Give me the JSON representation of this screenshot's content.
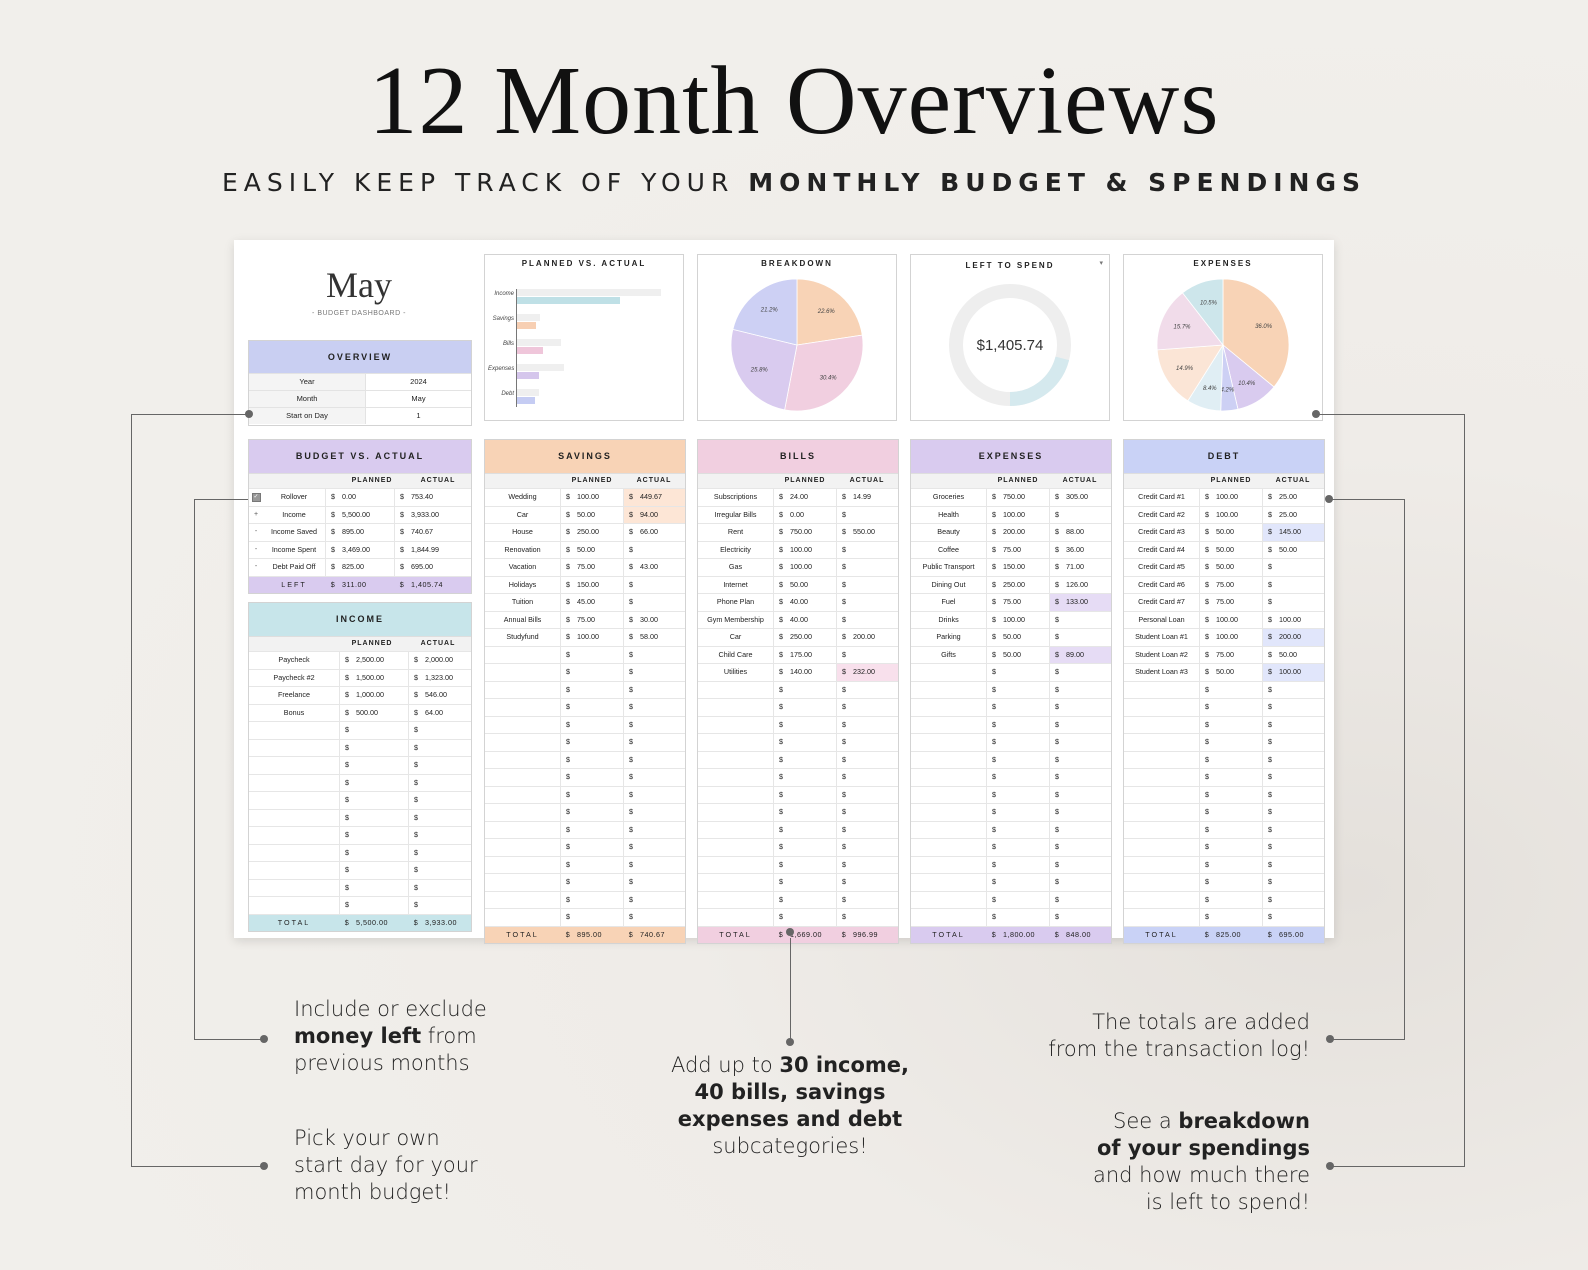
{
  "header": {
    "title": "12 Month Overviews",
    "subtitle_light": "EASILY KEEP TRACK OF YOUR",
    "subtitle_bold": "MONTHLY BUDGET & SPENDINGS"
  },
  "dashboard": {
    "month_title": "May",
    "month_subtitle": "- BUDGET DASHBOARD -",
    "overview": {
      "title": "OVERVIEW",
      "rows": [
        {
          "label": "Year",
          "value": "2024"
        },
        {
          "label": "Month",
          "value": "May"
        },
        {
          "label": "Start on Day",
          "value": "1"
        }
      ]
    },
    "colors": {
      "lavender": "#cdd0f4",
      "purple": "#d9cbef",
      "peach": "#f8d3b6",
      "pink": "#f1cfe0",
      "aqua": "#c7e5ea",
      "blue": "#c9d2f6"
    },
    "charts": {
      "planned_vs_actual": {
        "title": "PLANNED VS. ACTUAL",
        "type": "bar",
        "categories": [
          "Income",
          "Savings",
          "Bills",
          "Expenses",
          "Debt"
        ],
        "series": [
          {
            "values": [
              5500,
              895,
              1669,
              1800,
              825
            ],
            "color": "#efefef"
          },
          {
            "values": [
              3933,
              740.67,
              996.99,
              848,
              695
            ],
            "colors": [
              "#bfe0e6",
              "#f7cfb3",
              "#efc6da",
              "#d5c6ec",
              "#c5ccf3"
            ]
          }
        ]
      },
      "breakdown": {
        "title": "BREAKDOWN",
        "type": "pie",
        "slices": [
          {
            "value": 22.6,
            "label": "22.6%",
            "color": "#f8d3b6"
          },
          {
            "value": 30.4,
            "label": "30.4%",
            "color": "#f1cfe0"
          },
          {
            "value": 25.8,
            "label": "25.8%",
            "color": "#d9cbef"
          },
          {
            "value": 21.2,
            "label": "21.2%",
            "color": "#cdd0f4"
          }
        ]
      },
      "left_to_spend": {
        "title": "LEFT TO SPEND",
        "value": "$1,405.74",
        "fraction": 0.21,
        "color_fill": "#d5e9ee",
        "color_track": "#eeeeee"
      },
      "expenses": {
        "title": "EXPENSES",
        "type": "pie",
        "slices": [
          {
            "value": 36.0,
            "label": "36.0%",
            "color": "#f8d3b6"
          },
          {
            "value": 10.4,
            "label": "10.4%",
            "color": "#d9cbef"
          },
          {
            "value": 4.2,
            "label": "4.2%",
            "color": "#cdd0f4"
          },
          {
            "value": 8.4,
            "label": "8.4%",
            "color": "#e0eef4"
          },
          {
            "value": 14.9,
            "label": "14.9%",
            "color": "#fbe5d6"
          },
          {
            "value": 15.7,
            "label": "15.7%",
            "color": "#f1dcea"
          },
          {
            "value": 10.5,
            "label": "10.5%",
            "color": "#cde6eb"
          }
        ]
      }
    },
    "budget_vs_actual": {
      "title": "BUDGET VS. ACTUAL",
      "planned_label": "PLANNED",
      "actual_label": "ACTUAL",
      "currency": "$",
      "rows": [
        {
          "mark": "✓",
          "label": "Rollover",
          "planned": "0.00",
          "actual": "753.40"
        },
        {
          "mark": "+",
          "label": "Income",
          "planned": "5,500.00",
          "actual": "3,933.00"
        },
        {
          "mark": "-",
          "label": "Income Saved",
          "planned": "895.00",
          "actual": "740.67"
        },
        {
          "mark": "-",
          "label": "Income Spent",
          "planned": "3,469.00",
          "actual": "1,844.99"
        },
        {
          "mark": "-",
          "label": "Debt Paid Off",
          "planned": "825.00",
          "actual": "695.00"
        }
      ],
      "left": {
        "label": "LEFT",
        "planned": "311.00",
        "actual": "1,405.74"
      }
    },
    "income": {
      "title": "INCOME",
      "rows": [
        {
          "label": "Paycheck",
          "planned": "2,500.00",
          "actual": "2,000.00"
        },
        {
          "label": "Paycheck #2",
          "planned": "1,500.00",
          "actual": "1,323.00"
        },
        {
          "label": "Freelance",
          "planned": "1,000.00",
          "actual": "546.00"
        },
        {
          "label": "Bonus",
          "planned": "500.00",
          "actual": "64.00"
        }
      ],
      "total": {
        "label": "TOTAL",
        "planned": "5,500.00",
        "actual": "3,933.00"
      }
    },
    "savings": {
      "title": "SAVINGS",
      "rows": [
        {
          "label": "Wedding",
          "planned": "100.00",
          "actual": "449.67",
          "hl": true
        },
        {
          "label": "Car",
          "planned": "50.00",
          "actual": "94.00",
          "hl": true
        },
        {
          "label": "House",
          "planned": "250.00",
          "actual": "66.00"
        },
        {
          "label": "Renovation",
          "planned": "50.00",
          "actual": ""
        },
        {
          "label": "Vacation",
          "planned": "75.00",
          "actual": "43.00"
        },
        {
          "label": "Holidays",
          "planned": "150.00",
          "actual": ""
        },
        {
          "label": "Tuition",
          "planned": "45.00",
          "actual": ""
        },
        {
          "label": "Annual Bills",
          "planned": "75.00",
          "actual": "30.00"
        },
        {
          "label": "Studyfund",
          "planned": "100.00",
          "actual": "58.00"
        }
      ],
      "total": {
        "label": "TOTAL",
        "planned": "895.00",
        "actual": "740.67"
      }
    },
    "bills": {
      "title": "BILLS",
      "rows": [
        {
          "label": "Subscriptions",
          "planned": "24.00",
          "actual": "14.99"
        },
        {
          "label": "Irregular Bills",
          "planned": "0.00",
          "actual": ""
        },
        {
          "label": "Rent",
          "planned": "750.00",
          "actual": "550.00"
        },
        {
          "label": "Electricity",
          "planned": "100.00",
          "actual": ""
        },
        {
          "label": "Gas",
          "planned": "100.00",
          "actual": ""
        },
        {
          "label": "Internet",
          "planned": "50.00",
          "actual": ""
        },
        {
          "label": "Phone Plan",
          "planned": "40.00",
          "actual": ""
        },
        {
          "label": "Gym Membership",
          "planned": "40.00",
          "actual": ""
        },
        {
          "label": "Car",
          "planned": "250.00",
          "actual": "200.00"
        },
        {
          "label": "Child Care",
          "planned": "175.00",
          "actual": ""
        },
        {
          "label": "Utilities",
          "planned": "140.00",
          "actual": "232.00",
          "hl": true
        }
      ],
      "total": {
        "label": "TOTAL",
        "planned": "1,669.00",
        "actual": "996.99"
      }
    },
    "expenses_table": {
      "title": "EXPENSES",
      "rows": [
        {
          "label": "Groceries",
          "planned": "750.00",
          "actual": "305.00"
        },
        {
          "label": "Health",
          "planned": "100.00",
          "actual": ""
        },
        {
          "label": "Beauty",
          "planned": "200.00",
          "actual": "88.00"
        },
        {
          "label": "Coffee",
          "planned": "75.00",
          "actual": "36.00"
        },
        {
          "label": "Public Transport",
          "planned": "150.00",
          "actual": "71.00"
        },
        {
          "label": "Dining Out",
          "planned": "250.00",
          "actual": "126.00"
        },
        {
          "label": "Fuel",
          "planned": "75.00",
          "actual": "133.00",
          "hl": true
        },
        {
          "label": "Drinks",
          "planned": "100.00",
          "actual": ""
        },
        {
          "label": "Parking",
          "planned": "50.00",
          "actual": ""
        },
        {
          "label": "Gifts",
          "planned": "50.00",
          "actual": "89.00",
          "hl": true
        }
      ],
      "total": {
        "label": "TOTAL",
        "planned": "1,800.00",
        "actual": "848.00"
      }
    },
    "debt": {
      "title": "DEBT",
      "rows": [
        {
          "label": "Credit Card #1",
          "planned": "100.00",
          "actual": "25.00"
        },
        {
          "label": "Credit Card #2",
          "planned": "100.00",
          "actual": "25.00"
        },
        {
          "label": "Credit Card #3",
          "planned": "50.00",
          "actual": "145.00",
          "hl": true
        },
        {
          "label": "Credit Card #4",
          "planned": "50.00",
          "actual": "50.00"
        },
        {
          "label": "Credit Card #5",
          "planned": "50.00",
          "actual": ""
        },
        {
          "label": "Credit Card #6",
          "planned": "75.00",
          "actual": ""
        },
        {
          "label": "Credit Card #7",
          "planned": "75.00",
          "actual": ""
        },
        {
          "label": "Personal Loan",
          "planned": "100.00",
          "actual": "100.00"
        },
        {
          "label": "Student Loan #1",
          "planned": "100.00",
          "actual": "200.00",
          "hl": true
        },
        {
          "label": "Student Loan #2",
          "planned": "75.00",
          "actual": "50.00"
        },
        {
          "label": "Student Loan #3",
          "planned": "50.00",
          "actual": "100.00",
          "hl": true
        }
      ],
      "total": {
        "label": "TOTAL",
        "planned": "825.00",
        "actual": "695.00"
      }
    }
  },
  "callouts": {
    "rollover": {
      "line1": "Include or exclude",
      "bold": "money left",
      "after_bold": " from",
      "line3": "previous months"
    },
    "start_day": {
      "line1": "Pick your own",
      "line2": "start day for your",
      "line3": "month budget!"
    },
    "subcategories": {
      "pre": "Add up to ",
      "bold1": "30 income,",
      "bold2": "40 bills, savings",
      "bold3": "expenses and debt",
      "line4": "subcategories!"
    },
    "totals": {
      "line1": "The totals are added",
      "line2": "from the transaction log!"
    },
    "breakdown": {
      "pre": "See a ",
      "bold1": "breakdown",
      "bold2": "of your spendings",
      "line3": "and how much there",
      "line4": "is left to spend!"
    }
  }
}
